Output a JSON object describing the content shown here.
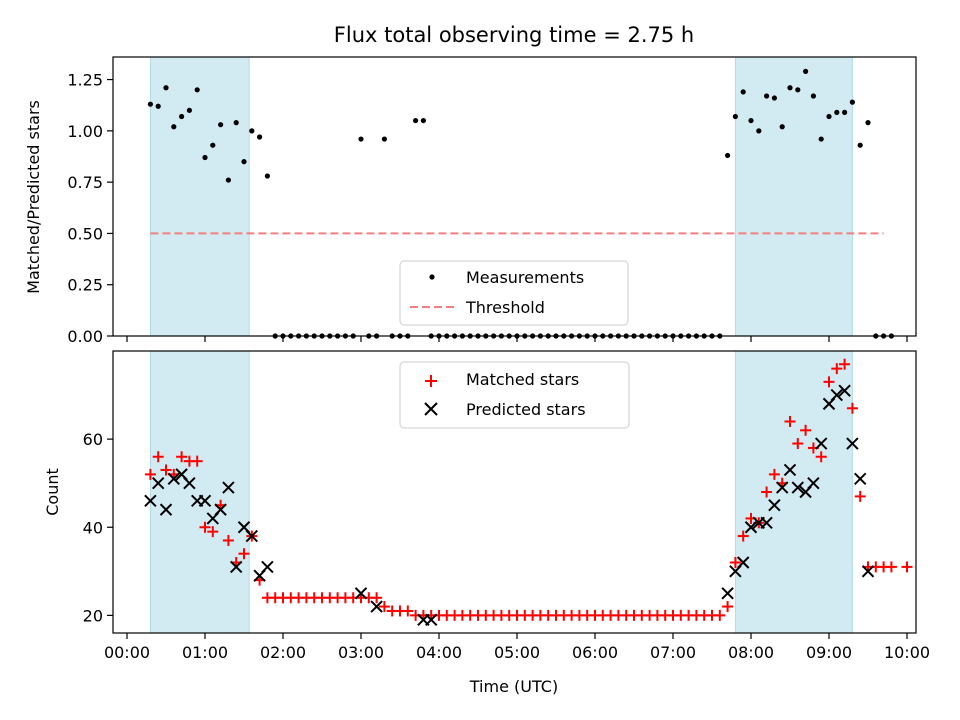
{
  "title": "Flux total observing time = 2.75 h",
  "colors": {
    "measurement": "#000000",
    "threshold": "#f08080",
    "matched": "#ff0000",
    "predicted": "#000000",
    "shade": "#add8e6"
  },
  "chart_data": [
    {
      "type": "scatter",
      "xlabel": "",
      "ylabel": "Matched/Predicted stars",
      "xlim": [
        "00:00",
        "10:00"
      ],
      "ylim": [
        0,
        1.36
      ],
      "grid": false,
      "legend_position": "bottom-center",
      "shaded_intervals": [
        [
          "00:18",
          "01:34"
        ],
        [
          "07:48",
          "09:18"
        ]
      ],
      "yticks": [
        "0.00",
        "0.25",
        "0.50",
        "0.75",
        "1.00",
        "1.25"
      ],
      "xticks": [
        "00:00",
        "01:00",
        "02:00",
        "03:00",
        "04:00",
        "05:00",
        "06:00",
        "07:00",
        "08:00",
        "09:00",
        "10:00"
      ],
      "threshold": {
        "name": "Threshold",
        "style": "dashed",
        "x": [
          "00:18",
          "09:42"
        ],
        "y": 0.5
      },
      "series": [
        {
          "name": "Measurements",
          "marker": "dot",
          "points": [
            [
              "00:18",
              1.13
            ],
            [
              "00:24",
              1.12
            ],
            [
              "00:30",
              1.21
            ],
            [
              "00:36",
              1.02
            ],
            [
              "00:42",
              1.07
            ],
            [
              "00:48",
              1.1
            ],
            [
              "00:54",
              1.2
            ],
            [
              "01:00",
              0.87
            ],
            [
              "01:06",
              0.93
            ],
            [
              "01:12",
              1.03
            ],
            [
              "01:18",
              0.76
            ],
            [
              "01:24",
              1.04
            ],
            [
              "01:30",
              0.85
            ],
            [
              "01:36",
              1.0
            ],
            [
              "01:42",
              0.97
            ],
            [
              "01:48",
              0.78
            ],
            [
              "01:54",
              0
            ],
            [
              "02:00",
              0
            ],
            [
              "02:06",
              0
            ],
            [
              "02:12",
              0
            ],
            [
              "02:18",
              0
            ],
            [
              "02:24",
              0
            ],
            [
              "02:30",
              0
            ],
            [
              "02:36",
              0
            ],
            [
              "02:42",
              0
            ],
            [
              "02:48",
              0
            ],
            [
              "02:54",
              0
            ],
            [
              "03:00",
              0.96
            ],
            [
              "03:06",
              0
            ],
            [
              "03:12",
              0
            ],
            [
              "03:18",
              0.96
            ],
            [
              "03:24",
              0
            ],
            [
              "03:30",
              0
            ],
            [
              "03:36",
              0
            ],
            [
              "03:42",
              1.05
            ],
            [
              "03:48",
              1.05
            ],
            [
              "03:54",
              0
            ],
            [
              "04:00",
              0
            ],
            [
              "04:06",
              0
            ],
            [
              "04:12",
              0
            ],
            [
              "04:18",
              0
            ],
            [
              "04:24",
              0
            ],
            [
              "04:30",
              0
            ],
            [
              "04:36",
              0
            ],
            [
              "04:42",
              0
            ],
            [
              "04:48",
              0
            ],
            [
              "04:54",
              0
            ],
            [
              "05:00",
              0
            ],
            [
              "05:06",
              0
            ],
            [
              "05:12",
              0
            ],
            [
              "05:18",
              0
            ],
            [
              "05:24",
              0
            ],
            [
              "05:30",
              0
            ],
            [
              "05:36",
              0
            ],
            [
              "05:42",
              0
            ],
            [
              "05:48",
              0
            ],
            [
              "05:54",
              0
            ],
            [
              "06:00",
              0
            ],
            [
              "06:06",
              0
            ],
            [
              "06:12",
              0
            ],
            [
              "06:18",
              0
            ],
            [
              "06:24",
              0
            ],
            [
              "06:30",
              0
            ],
            [
              "06:36",
              0
            ],
            [
              "06:42",
              0
            ],
            [
              "06:48",
              0
            ],
            [
              "06:54",
              0
            ],
            [
              "07:00",
              0
            ],
            [
              "07:06",
              0
            ],
            [
              "07:12",
              0
            ],
            [
              "07:18",
              0
            ],
            [
              "07:24",
              0
            ],
            [
              "07:30",
              0
            ],
            [
              "07:36",
              0
            ],
            [
              "07:42",
              0.88
            ],
            [
              "07:48",
              1.07
            ],
            [
              "07:54",
              1.19
            ],
            [
              "08:00",
              1.05
            ],
            [
              "08:06",
              1.0
            ],
            [
              "08:12",
              1.17
            ],
            [
              "08:18",
              1.16
            ],
            [
              "08:24",
              1.02
            ],
            [
              "08:30",
              1.21
            ],
            [
              "08:36",
              1.2
            ],
            [
              "08:42",
              1.29
            ],
            [
              "08:48",
              1.17
            ],
            [
              "08:54",
              0.96
            ],
            [
              "09:00",
              1.07
            ],
            [
              "09:06",
              1.09
            ],
            [
              "09:12",
              1.09
            ],
            [
              "09:18",
              1.14
            ],
            [
              "09:24",
              0.93
            ],
            [
              "09:30",
              1.04
            ],
            [
              "09:36",
              0
            ],
            [
              "09:42",
              0
            ],
            [
              "09:48",
              0
            ]
          ]
        }
      ]
    },
    {
      "type": "scatter",
      "xlabel": "Time (UTC)",
      "ylabel": "Count",
      "xlim": [
        "00:00",
        "10:00"
      ],
      "ylim": [
        16,
        80
      ],
      "grid": false,
      "legend_position": "top-center",
      "shaded_intervals": [
        [
          "00:18",
          "01:34"
        ],
        [
          "07:48",
          "09:18"
        ]
      ],
      "yticks": [
        "20",
        "40",
        "60"
      ],
      "xticks": [
        "00:00",
        "01:00",
        "02:00",
        "03:00",
        "04:00",
        "05:00",
        "06:00",
        "07:00",
        "08:00",
        "09:00",
        "10:00"
      ],
      "series": [
        {
          "name": "Matched stars",
          "marker": "plus",
          "points": [
            [
              "00:18",
              52
            ],
            [
              "00:24",
              56
            ],
            [
              "00:30",
              53
            ],
            [
              "00:36",
              52
            ],
            [
              "00:42",
              56
            ],
            [
              "00:48",
              55
            ],
            [
              "00:54",
              55
            ],
            [
              "01:00",
              40
            ],
            [
              "01:06",
              39
            ],
            [
              "01:12",
              45
            ],
            [
              "01:18",
              37
            ],
            [
              "01:24",
              32
            ],
            [
              "01:30",
              34
            ],
            [
              "01:36",
              38
            ],
            [
              "01:42",
              28
            ],
            [
              "01:48",
              24
            ],
            [
              "01:54",
              24
            ],
            [
              "02:00",
              24
            ],
            [
              "02:06",
              24
            ],
            [
              "02:12",
              24
            ],
            [
              "02:18",
              24
            ],
            [
              "02:24",
              24
            ],
            [
              "02:30",
              24
            ],
            [
              "02:36",
              24
            ],
            [
              "02:42",
              24
            ],
            [
              "02:48",
              24
            ],
            [
              "02:54",
              24
            ],
            [
              "03:00",
              24
            ],
            [
              "03:06",
              24
            ],
            [
              "03:12",
              24
            ],
            [
              "03:18",
              22
            ],
            [
              "03:24",
              21
            ],
            [
              "03:30",
              21
            ],
            [
              "03:36",
              21
            ],
            [
              "03:42",
              20
            ],
            [
              "03:48",
              20
            ],
            [
              "03:54",
              20
            ],
            [
              "04:00",
              20
            ],
            [
              "04:06",
              20
            ],
            [
              "04:12",
              20
            ],
            [
              "04:18",
              20
            ],
            [
              "04:24",
              20
            ],
            [
              "04:30",
              20
            ],
            [
              "04:36",
              20
            ],
            [
              "04:42",
              20
            ],
            [
              "04:48",
              20
            ],
            [
              "04:54",
              20
            ],
            [
              "05:00",
              20
            ],
            [
              "05:06",
              20
            ],
            [
              "05:12",
              20
            ],
            [
              "05:18",
              20
            ],
            [
              "05:24",
              20
            ],
            [
              "05:30",
              20
            ],
            [
              "05:36",
              20
            ],
            [
              "05:42",
              20
            ],
            [
              "05:48",
              20
            ],
            [
              "05:54",
              20
            ],
            [
              "06:00",
              20
            ],
            [
              "06:06",
              20
            ],
            [
              "06:12",
              20
            ],
            [
              "06:18",
              20
            ],
            [
              "06:24",
              20
            ],
            [
              "06:30",
              20
            ],
            [
              "06:36",
              20
            ],
            [
              "06:42",
              20
            ],
            [
              "06:48",
              20
            ],
            [
              "06:54",
              20
            ],
            [
              "07:00",
              20
            ],
            [
              "07:06",
              20
            ],
            [
              "07:12",
              20
            ],
            [
              "07:18",
              20
            ],
            [
              "07:24",
              20
            ],
            [
              "07:30",
              20
            ],
            [
              "07:36",
              20
            ],
            [
              "07:42",
              22
            ],
            [
              "07:48",
              32
            ],
            [
              "07:54",
              38
            ],
            [
              "08:00",
              42
            ],
            [
              "08:06",
              41
            ],
            [
              "08:12",
              48
            ],
            [
              "08:18",
              52
            ],
            [
              "08:24",
              50
            ],
            [
              "08:30",
              64
            ],
            [
              "08:36",
              59
            ],
            [
              "08:42",
              62
            ],
            [
              "08:48",
              58
            ],
            [
              "08:54",
              56
            ],
            [
              "09:00",
              73
            ],
            [
              "09:06",
              76
            ],
            [
              "09:12",
              77
            ],
            [
              "09:18",
              67
            ],
            [
              "09:24",
              47
            ],
            [
              "09:30",
              31
            ],
            [
              "09:36",
              31
            ],
            [
              "09:42",
              31
            ],
            [
              "09:48",
              31
            ],
            [
              "10:00",
              31
            ]
          ]
        },
        {
          "name": "Predicted stars",
          "marker": "cross",
          "points": [
            [
              "00:18",
              46
            ],
            [
              "00:24",
              50
            ],
            [
              "00:30",
              44
            ],
            [
              "00:36",
              51
            ],
            [
              "00:42",
              52
            ],
            [
              "00:48",
              50
            ],
            [
              "00:54",
              46
            ],
            [
              "01:00",
              46
            ],
            [
              "01:06",
              42
            ],
            [
              "01:12",
              44
            ],
            [
              "01:18",
              49
            ],
            [
              "01:24",
              31
            ],
            [
              "01:30",
              40
            ],
            [
              "01:36",
              38
            ],
            [
              "01:42",
              29
            ],
            [
              "01:48",
              31
            ],
            [
              "03:00",
              25
            ],
            [
              "03:12",
              22
            ],
            [
              "03:48",
              19
            ],
            [
              "03:54",
              19
            ],
            [
              "07:42",
              25
            ],
            [
              "07:48",
              30
            ],
            [
              "07:54",
              32
            ],
            [
              "08:00",
              40
            ],
            [
              "08:06",
              41
            ],
            [
              "08:12",
              41
            ],
            [
              "08:18",
              45
            ],
            [
              "08:24",
              49
            ],
            [
              "08:30",
              53
            ],
            [
              "08:36",
              49
            ],
            [
              "08:42",
              48
            ],
            [
              "08:48",
              50
            ],
            [
              "08:54",
              59
            ],
            [
              "09:00",
              68
            ],
            [
              "09:06",
              70
            ],
            [
              "09:12",
              71
            ],
            [
              "09:18",
              59
            ],
            [
              "09:24",
              51
            ],
            [
              "09:30",
              30
            ]
          ]
        }
      ]
    }
  ]
}
